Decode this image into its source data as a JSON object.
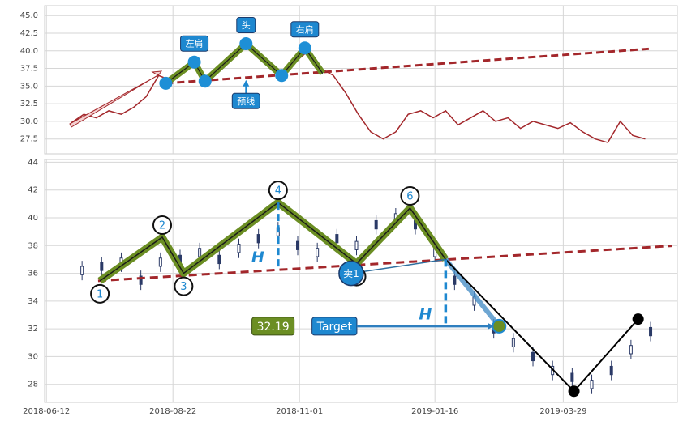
{
  "chart_data": [
    {
      "type": "line",
      "xlim": [
        "2018-06-11",
        "2019-06-01"
      ],
      "ylim": [
        25.4,
        46.4
      ],
      "yticks": [
        27.5,
        {
          "value": 30,
          "label": "30.0"
        },
        32.5,
        {
          "value": 35,
          "label": "35.0"
        },
        37.5,
        {
          "value": 40,
          "label": "40.0"
        },
        42.5,
        {
          "value": 45,
          "label": "45.0"
        }
      ],
      "grid": true,
      "color": "#a3272b",
      "x": [
        "2018-06-26",
        "2018-07-03",
        "2018-07-10",
        "2018-07-17",
        "2018-07-24",
        "2018-07-31",
        "2018-08-07",
        "2018-08-14",
        "2018-08-21",
        "2018-08-28",
        "2018-09-04",
        "2018-09-11",
        "2018-09-18",
        "2018-09-25",
        "2018-10-02",
        "2018-10-09",
        "2018-10-16",
        "2018-10-23",
        "2018-10-30",
        "2018-11-06",
        "2018-11-13",
        "2018-11-20",
        "2018-11-27",
        "2018-12-04",
        "2018-12-11",
        "2018-12-18",
        "2018-12-25",
        "2019-01-01",
        "2019-01-08",
        "2019-01-15",
        "2019-01-22",
        "2019-01-29",
        "2019-02-05",
        "2019-02-12",
        "2019-02-19",
        "2019-02-26",
        "2019-03-05",
        "2019-03-12",
        "2019-03-19",
        "2019-03-26",
        "2019-04-02",
        "2019-04-09",
        "2019-04-16",
        "2019-04-23",
        "2019-04-30",
        "2019-05-07",
        "2019-05-14"
      ],
      "values": [
        29.8,
        31.0,
        30.5,
        31.5,
        31.0,
        32.0,
        33.5,
        36.5,
        35.8,
        37.0,
        38.2,
        35.8,
        37.5,
        39.5,
        41.0,
        39.0,
        38.0,
        36.6,
        38.5,
        40.0,
        37.5,
        36.5,
        34.0,
        31.0,
        28.5,
        27.5,
        28.5,
        31.0,
        31.5,
        30.5,
        31.5,
        29.5,
        30.5,
        31.5,
        30.0,
        30.5,
        29.0,
        30.0,
        29.5,
        29.0,
        29.8,
        28.5,
        27.5,
        27.0,
        30.0,
        28.0,
        27.5
      ],
      "pattern": {
        "x": [
          "2018-08-18",
          "2018-09-03",
          "2018-09-09",
          "2018-10-02",
          "2018-10-22",
          "2018-11-04",
          "2018-11-14"
        ],
        "values": [
          35.4,
          38.4,
          35.7,
          41.0,
          36.5,
          40.4,
          36.8
        ],
        "labels": [
          null,
          "左肩",
          null,
          "头",
          null,
          "右肩",
          null
        ],
        "color": "#6b8e23",
        "marker_color": "#1e8fd6"
      },
      "neckline": {
        "x": [
          "2018-08-18",
          "2019-05-17"
        ],
        "values": [
          35.4,
          40.3
        ],
        "color": "#a3272b",
        "label": "预线"
      }
    },
    {
      "type": "candlestick",
      "xlim": [
        "2018-06-11",
        "2019-06-01"
      ],
      "ylim": [
        26.7,
        44.2
      ],
      "yticks": [
        28,
        30,
        32,
        34,
        36,
        38,
        40,
        42,
        44
      ],
      "xticks": [
        "2018-06-12",
        "2018-08-22",
        "2018-11-01",
        "2019-01-16",
        "2019-03-29"
      ],
      "grid": true,
      "color": "#2b3a67",
      "x": [
        "2018-07-02",
        "2018-07-13",
        "2018-07-24",
        "2018-08-04",
        "2018-08-15",
        "2018-08-26",
        "2018-09-06",
        "2018-09-17",
        "2018-09-28",
        "2018-10-09",
        "2018-10-20",
        "2018-10-31",
        "2018-11-11",
        "2018-11-22",
        "2018-12-03",
        "2018-12-14",
        "2018-12-25",
        "2019-01-05",
        "2019-01-16",
        "2019-01-27",
        "2019-02-07",
        "2019-02-18",
        "2019-03-01",
        "2019-03-12",
        "2019-03-23",
        "2019-04-03",
        "2019-04-14",
        "2019-04-25",
        "2019-05-06",
        "2019-05-17"
      ],
      "open": [
        35.9,
        36.8,
        36.5,
        35.8,
        36.5,
        37.3,
        37.2,
        37.3,
        37.5,
        38.8,
        38.7,
        38.3,
        37.2,
        38.8,
        37.7,
        39.8,
        39.7,
        39.8,
        37.2,
        35.8,
        33.7,
        32.3,
        30.7,
        30.3,
        28.7,
        28.8,
        27.7,
        29.3,
        30.2,
        32.1
      ],
      "high": [
        36.9,
        37.2,
        37.5,
        36.2,
        37.5,
        37.7,
        38.2,
        37.7,
        38.5,
        39.2,
        39.7,
        38.7,
        38.2,
        39.2,
        38.7,
        40.2,
        40.7,
        40.2,
        38.2,
        36.2,
        34.7,
        32.7,
        31.7,
        30.7,
        29.7,
        29.2,
        28.7,
        29.7,
        31.2,
        32.5
      ],
      "low": [
        35.5,
        35.8,
        36.1,
        34.8,
        36.1,
        36.3,
        36.8,
        36.3,
        37.1,
        37.8,
        38.3,
        37.3,
        36.8,
        37.8,
        37.3,
        38.8,
        39.3,
        38.8,
        36.8,
        34.8,
        33.3,
        31.3,
        30.3,
        29.3,
        28.3,
        27.8,
        27.3,
        28.3,
        29.8,
        31.1
      ],
      "close": [
        36.5,
        36.2,
        37.1,
        35.2,
        37.1,
        36.7,
        37.8,
        36.7,
        38.1,
        38.2,
        39.3,
        37.7,
        37.8,
        38.2,
        38.3,
        39.2,
        40.3,
        39.2,
        37.8,
        35.2,
        34.3,
        31.7,
        31.3,
        29.7,
        29.3,
        28.2,
        28.3,
        28.7,
        30.8,
        31.5
      ],
      "pattern": {
        "x": [
          "2018-07-12",
          "2018-08-16",
          "2018-08-28",
          "2018-10-20",
          "2018-12-03",
          "2019-01-02",
          "2019-01-22"
        ],
        "values": [
          35.46,
          38.6,
          36.0,
          41.1,
          36.7,
          40.7,
          37.0
        ],
        "labels": [
          "1",
          "2",
          "3",
          "4",
          null,
          "6",
          null
        ],
        "color": "#6b8e23"
      },
      "forecast": {
        "x": [
          "2019-01-22",
          "2019-04-04",
          "2019-05-10"
        ],
        "values": [
          37.0,
          27.5,
          32.7
        ],
        "color": "#000000"
      },
      "neckline": {
        "x": [
          "2018-07-11",
          "2019-05-29"
        ],
        "values": [
          35.46,
          37.98
        ],
        "color": "#a3272b"
      },
      "height_markers": [
        {
          "x": "2018-10-20",
          "values": [
            41.1,
            36.3
          ],
          "label": "H"
        },
        {
          "x": "2019-01-22",
          "values": [
            37.0,
            32.19
          ],
          "label": "H"
        }
      ],
      "sell": {
        "x": "2018-11-30",
        "value": 36.0,
        "label": "卖1"
      },
      "target": {
        "x": "2019-02-21",
        "value": 32.19,
        "label": "Target"
      }
    }
  ]
}
